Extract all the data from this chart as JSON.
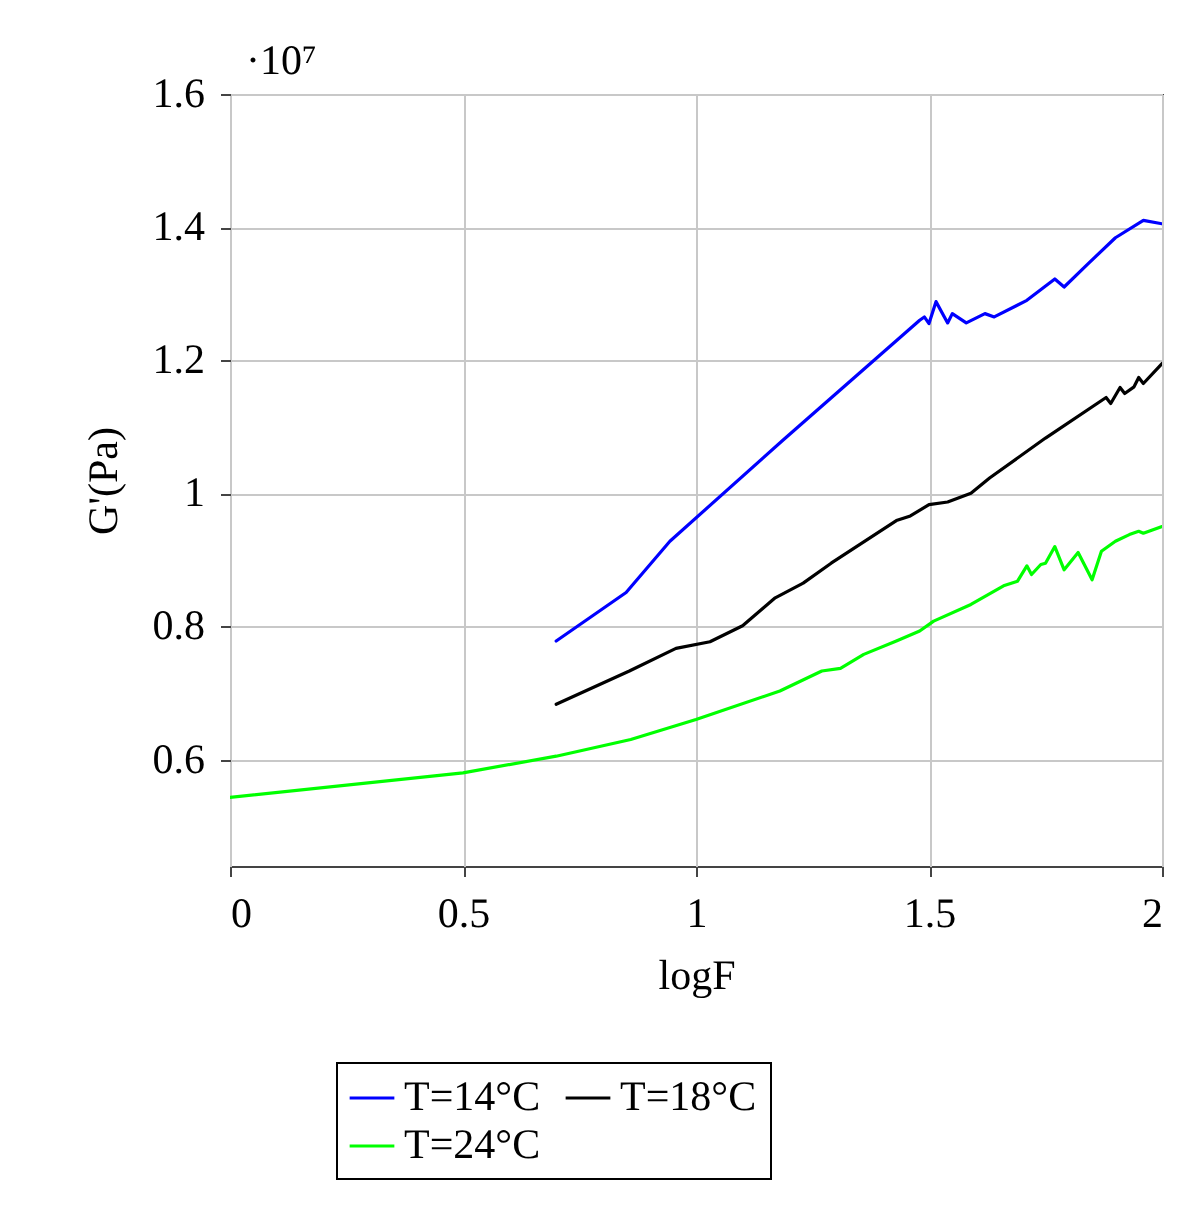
{
  "chart_data": {
    "type": "line",
    "xlabel": "logF",
    "ylabel": "G'(Pa)",
    "annotations": [
      "·10⁷"
    ],
    "xlim": [
      0,
      2
    ],
    "xticks": [
      0,
      0.5,
      1,
      1.5,
      2
    ],
    "ylim": [
      0.44,
      1.6
    ],
    "yticks": [
      0.6,
      0.8,
      1,
      1.2,
      1.4,
      1.6
    ],
    "grid": true,
    "legend": "bottom",
    "marker": "none",
    "line_style": "solid",
    "series": [
      {
        "name": "T=14°C",
        "color": "#0000ff",
        "x": [
          0.7,
          0.85,
          0.944,
          1.187,
          1.48,
          1.49,
          1.5,
          1.515,
          1.54,
          1.55,
          1.58,
          1.62,
          1.64,
          1.71,
          1.77,
          1.79,
          1.84,
          1.9,
          1.96,
          2.0
        ],
        "values": [
          0.778,
          0.851,
          0.928,
          1.08,
          1.26,
          1.265,
          1.255,
          1.288,
          1.256,
          1.27,
          1.256,
          1.27,
          1.265,
          1.29,
          1.322,
          1.31,
          1.344,
          1.384,
          1.41,
          1.405
        ]
      },
      {
        "name": "T=18°C",
        "color": "#000000",
        "x": [
          0.7,
          0.857,
          0.957,
          1.03,
          1.1,
          1.17,
          1.23,
          1.29,
          1.43,
          1.46,
          1.5,
          1.54,
          1.59,
          1.63,
          1.75,
          1.88,
          1.89,
          1.91,
          1.92,
          1.94,
          1.95,
          1.96,
          2.0
        ],
        "values": [
          0.683,
          0.733,
          0.767,
          0.777,
          0.801,
          0.843,
          0.865,
          0.895,
          0.959,
          0.966,
          0.983,
          0.987,
          1.0,
          1.023,
          1.083,
          1.144,
          1.135,
          1.159,
          1.15,
          1.16,
          1.174,
          1.165,
          1.195
        ]
      },
      {
        "name": "T=24°C",
        "color": "#00ff00",
        "x": [
          0,
          0.5,
          0.7,
          0.86,
          1.0,
          1.18,
          1.27,
          1.31,
          1.36,
          1.43,
          1.48,
          1.51,
          1.59,
          1.66,
          1.69,
          1.71,
          1.72,
          1.74,
          1.75,
          1.77,
          1.79,
          1.82,
          1.85,
          1.87,
          1.9,
          1.93,
          1.95,
          1.96,
          2.0
        ],
        "values": [
          0.543,
          0.58,
          0.605,
          0.63,
          0.66,
          0.703,
          0.733,
          0.737,
          0.758,
          0.778,
          0.793,
          0.808,
          0.833,
          0.861,
          0.868,
          0.891,
          0.878,
          0.893,
          0.895,
          0.92,
          0.885,
          0.911,
          0.87,
          0.913,
          0.928,
          0.938,
          0.943,
          0.94,
          0.95
        ]
      }
    ]
  }
}
